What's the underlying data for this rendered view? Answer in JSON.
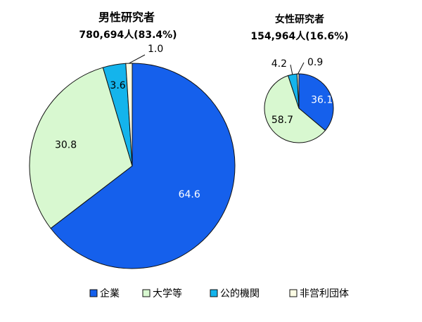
{
  "chart_data": [
    {
      "type": "pie",
      "title": "男性研究者",
      "subtitle": "780,694人(83.4%)",
      "categories": [
        "企業",
        "大学等",
        "公的機関",
        "非営利団体"
      ],
      "values": [
        64.6,
        30.8,
        3.6,
        1.0
      ],
      "value_labels": [
        "64.6",
        "30.8",
        "3.6",
        "1.0"
      ]
    },
    {
      "type": "pie",
      "title": "女性研究者",
      "subtitle": "154,964人(16.6%)",
      "categories": [
        "企業",
        "大学等",
        "公的機関",
        "非営利団体"
      ],
      "values": [
        36.1,
        58.7,
        4.2,
        0.9
      ],
      "value_labels": [
        "36.1",
        "58.7",
        "4.2",
        "0.9"
      ]
    }
  ],
  "legend": {
    "items": [
      {
        "label": "企業",
        "color": "#1560EC"
      },
      {
        "label": "大学等",
        "color": "#D8F8D0"
      },
      {
        "label": "公的機関",
        "color": "#14B4EC"
      },
      {
        "label": "非営利団体",
        "color": "#FCFCE4"
      }
    ]
  },
  "colors": {
    "slices": [
      "#1560EC",
      "#D8F8D0",
      "#14B4EC",
      "#FCFCE4"
    ],
    "edge": "#111111"
  }
}
